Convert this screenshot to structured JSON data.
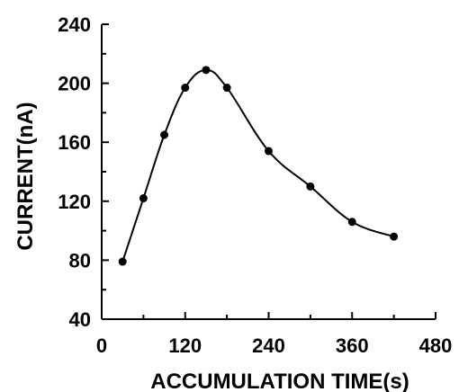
{
  "chart_data": {
    "type": "line",
    "xlabel": "ACCUMULATION TIME(s)",
    "ylabel": "CURRENT(nA)",
    "xlim": [
      0,
      480
    ],
    "ylim": [
      40,
      240
    ],
    "xticks": [
      0,
      120,
      240,
      360,
      480
    ],
    "yticks": [
      40,
      80,
      120,
      160,
      200,
      240
    ],
    "grid": false,
    "legend": "none",
    "series": [
      {
        "marker": "circle",
        "color": "#000000",
        "x": [
          30,
          60,
          90,
          120,
          150,
          180,
          240,
          300,
          360,
          420
        ],
        "y": [
          79,
          122,
          165,
          197,
          209,
          197,
          154,
          130,
          106,
          96
        ]
      }
    ]
  }
}
